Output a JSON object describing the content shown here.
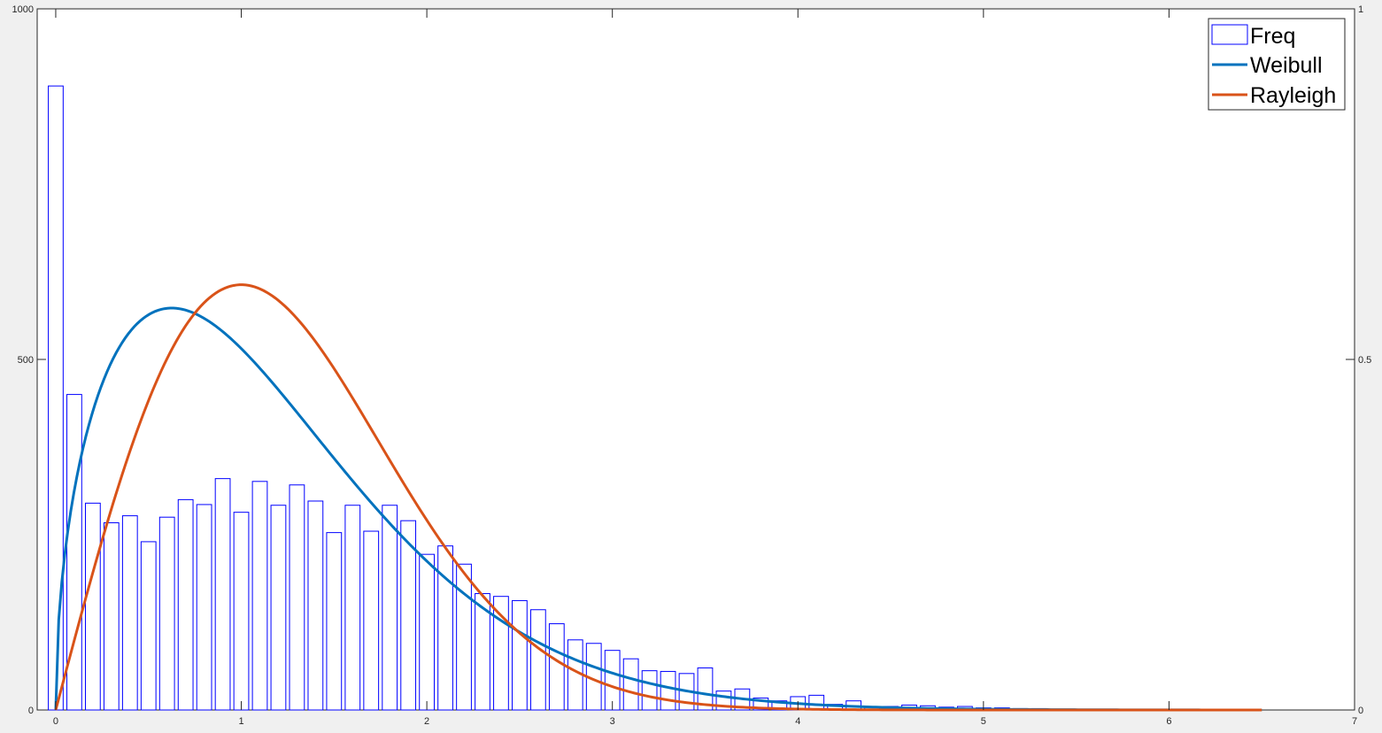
{
  "chart_data": {
    "type": "bar",
    "title": "",
    "xlabel": "",
    "ylabel": "",
    "xlim": [
      -0.1,
      7
    ],
    "ylim_left": [
      0,
      1000
    ],
    "ylim_right": [
      0,
      1
    ],
    "x_ticks": [
      "0",
      "1",
      "2",
      "3",
      "4",
      "5",
      "6",
      "7"
    ],
    "y_left_ticks": [
      "0",
      "500",
      "1000"
    ],
    "y_right_ticks": [
      "0",
      "0.5",
      "1"
    ],
    "legend_position": "top-right",
    "grid": false,
    "bar_width": 0.08,
    "series": [
      {
        "name": "Freq",
        "kind": "bar",
        "axis": "left",
        "color": "#0000ff",
        "x": [
          0,
          0.1,
          0.2,
          0.3,
          0.4,
          0.5,
          0.6,
          0.7,
          0.8,
          0.9,
          1.0,
          1.1,
          1.2,
          1.3,
          1.4,
          1.5,
          1.6,
          1.7,
          1.8,
          1.9,
          2.0,
          2.1,
          2.2,
          2.3,
          2.4,
          2.5,
          2.6,
          2.7,
          2.8,
          2.9,
          3.0,
          3.1,
          3.2,
          3.3,
          3.4,
          3.5,
          3.6,
          3.7,
          3.8,
          3.9,
          4.0,
          4.1,
          4.2,
          4.3,
          4.4,
          4.5,
          4.6,
          4.7,
          4.8,
          4.9,
          5.0,
          5.1,
          5.2,
          5.3,
          5.4
        ],
        "values": [
          890,
          450,
          295,
          267,
          277,
          240,
          275,
          300,
          293,
          330,
          282,
          326,
          292,
          321,
          298,
          253,
          292,
          255,
          292,
          270,
          222,
          234,
          208,
          166,
          162,
          156,
          143,
          123,
          100,
          95,
          85,
          73,
          56,
          55,
          52,
          60,
          27,
          30,
          17,
          13,
          19,
          21,
          8,
          13,
          5,
          5,
          7,
          6,
          4,
          5,
          3,
          3,
          2,
          2,
          1
        ]
      },
      {
        "name": "Weibull",
        "kind": "line",
        "axis": "right",
        "color": "#0072bd",
        "shape": 1.5,
        "scale": 1.3,
        "x_range": [
          0,
          6.5
        ]
      },
      {
        "name": "Rayleigh",
        "kind": "line",
        "axis": "right",
        "color": "#d95319",
        "sigma": 1.0,
        "x_range": [
          0,
          6.5
        ]
      }
    ]
  }
}
